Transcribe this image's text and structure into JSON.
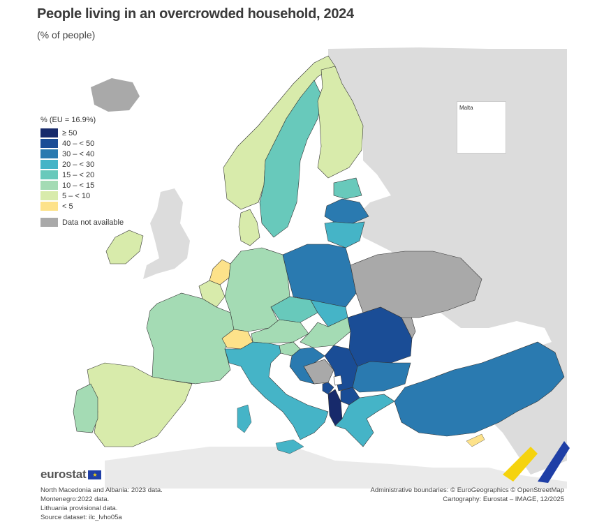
{
  "title": "People living in an overcrowded household, 2024",
  "subtitle": "(% of people)",
  "legend": {
    "title": "% (EU = 16.9%)",
    "classes": [
      {
        "label": "≥ 50",
        "color": "#172a6b"
      },
      {
        "label": "40 – < 50",
        "color": "#1a4d96"
      },
      {
        "label": "30 – < 40",
        "color": "#2a7ab0"
      },
      {
        "label": "20 – < 30",
        "color": "#45b4c7"
      },
      {
        "label": "15 – < 20",
        "color": "#68c9bb"
      },
      {
        "label": "10 – < 15",
        "color": "#a4dbb4"
      },
      {
        "label": "5 – < 10",
        "color": "#d8ebab"
      },
      {
        "label": "< 5",
        "color": "#fde28a"
      }
    ],
    "na_label": "Data not available",
    "na_color": "#a9a9a9"
  },
  "inset": {
    "label": "Malta"
  },
  "logo": {
    "text": "eurostat",
    "flag_icon": "eu-flag-icon"
  },
  "notes": [
    "North Macedonia and Albania: 2023 data.",
    "Montenegro:2022 data.",
    "Lithuania provisional data.",
    "Source dataset: ilc_lvho05a"
  ],
  "credits": [
    "Administrative boundaries: © EuroGeographics © OpenStreetMap",
    "Cartography: Eurostat – IMAGE, 12/2025"
  ],
  "colors": {
    "non_eu_land": "#dcdcdc",
    "sea": "#ffffff",
    "border": "#333333"
  }
}
